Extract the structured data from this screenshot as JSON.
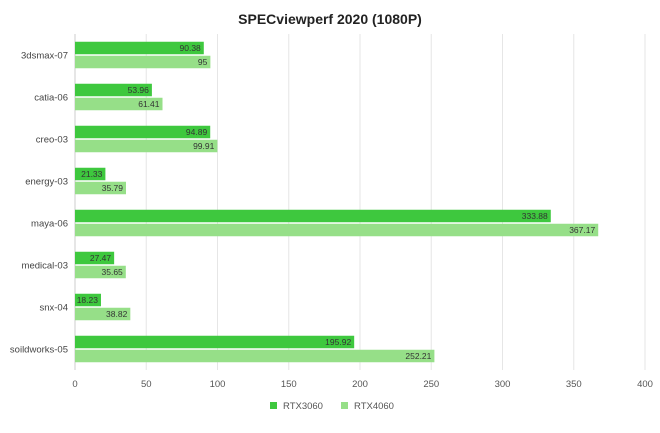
{
  "chart_data": {
    "type": "bar",
    "orientation": "horizontal",
    "title": "SPECviewperf 2020 (1080P)",
    "categories": [
      "3dsmax-07",
      "catia-06",
      "creo-03",
      "energy-03",
      "maya-06",
      "medical-03",
      "snx-04",
      "soildworks-05"
    ],
    "series": [
      {
        "name": "RTX3060",
        "color": "#3ec83e",
        "values": [
          90.38,
          53.96,
          94.89,
          21.33,
          333.88,
          27.47,
          18.23,
          195.92
        ]
      },
      {
        "name": "RTX4060",
        "color": "#96df88",
        "values": [
          95,
          61.41,
          99.91,
          35.79,
          367.17,
          35.65,
          38.82,
          252.21
        ]
      }
    ],
    "xlim": [
      0,
      400
    ],
    "xticks": [
      0,
      50,
      100,
      150,
      200,
      250,
      300,
      350,
      400
    ],
    "grid": true,
    "legend_position": "bottom"
  }
}
